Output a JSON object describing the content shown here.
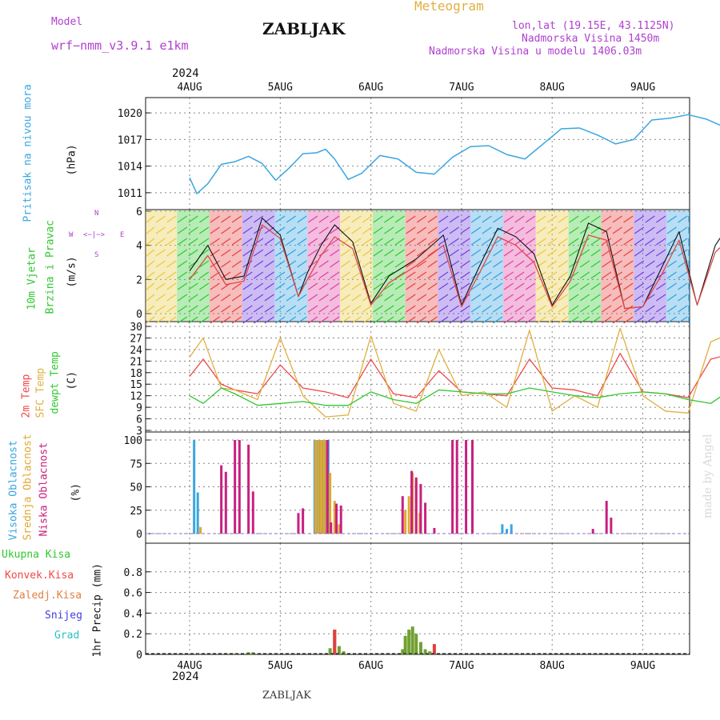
{
  "header": {
    "model_label": "Model",
    "model_name": "wrf−nmm_v3.9.1 e1km",
    "site": "ZABLJAK",
    "meteogram": "Meteogram",
    "coords": "lon,lat (19.15E, 43.1125N)",
    "elevation": "Nadmorska Visina 1450m",
    "model_elevation": "Nadmorska Visina u modelu 1406.03m",
    "footer_site": "ZABLJAK",
    "credit": "made by Angel",
    "year_top": "2024",
    "year_bottom": "2024"
  },
  "day_labels": [
    "4AUG",
    "5AUG",
    "6AUG",
    "7AUG",
    "8AUG",
    "9AUG"
  ],
  "panel_labels": {
    "pressure": {
      "name": "Pritisak na nivou mora",
      "unit": "(hPa)"
    },
    "wind": {
      "name1": "10m Vjetar",
      "name2": "Brzina i Pravac",
      "unit": "(m/s)",
      "rose_n": "N",
      "rose_s": "S",
      "rose_w": "W",
      "rose_e": "E"
    },
    "temp": {
      "t2m": "2m Temp",
      "sfc": "SFC Temp",
      "dew": "dewpt Temp",
      "unit": "(C)"
    },
    "cloud": {
      "high": "Visoka Oblacnost",
      "mid": "Srednja Oblacnost",
      "low": "Niska Oblacnost",
      "unit": "(%)"
    },
    "precip": {
      "total": "Ukupna Kisa",
      "conv": "Konvek.Kisa",
      "frz": "Zaledj.Kisa",
      "snow": "Snijeg",
      "grad": "Grad",
      "unit": "1hr Precip (mm)"
    }
  },
  "colors": {
    "pressure": "#3aa6e0",
    "t2m": "#f04848",
    "sfc": "#e0b040",
    "dew": "#30c830",
    "high": "#3aa6e0",
    "mid": "#e0a830",
    "low": "#c82080",
    "precip_total": "#70a030",
    "precip_conv": "#e04040",
    "purple": "#b040d0"
  },
  "chart_data": [
    {
      "type": "line",
      "panel": "pressure",
      "ylabel": "(hPa)",
      "ylim": [
        1010,
        1021
      ],
      "yticks": [
        1011,
        1014,
        1017,
        1020
      ],
      "x": [
        0,
        0.08,
        0.2,
        0.35,
        0.5,
        0.65,
        0.8,
        0.95,
        1.1,
        1.25,
        1.4,
        1.5,
        1.6,
        1.75,
        1.9,
        2.1,
        2.3,
        2.5,
        2.7,
        2.9,
        3.1,
        3.3,
        3.5,
        3.7,
        3.9,
        4.1,
        4.3,
        4.5,
        4.7,
        4.9,
        5.1,
        5.3,
        5.5,
        5.7,
        5.9,
        6.0
      ],
      "values": [
        1012.7,
        1010.9,
        1012.0,
        1014.2,
        1014.5,
        1015.1,
        1014.3,
        1012.4,
        1013.8,
        1015.4,
        1015.5,
        1015.9,
        1014.8,
        1012.5,
        1013.2,
        1015.2,
        1014.8,
        1013.3,
        1013.1,
        1015.0,
        1016.2,
        1016.3,
        1015.3,
        1014.8,
        1016.5,
        1018.2,
        1018.3,
        1017.5,
        1016.5,
        1017.0,
        1019.2,
        1019.4,
        1019.8,
        1019.3,
        1018.4,
        1017.8
      ],
      "color": "#3aa6e0"
    },
    {
      "type": "line",
      "panel": "wind",
      "ylabel": "(m/s)",
      "ylim": [
        0,
        6
      ],
      "yticks": [
        0,
        2,
        4,
        6
      ],
      "series": [
        {
          "x": [
            0,
            0.2,
            0.4,
            0.6,
            0.8,
            1.0,
            1.2,
            1.3,
            1.45,
            1.6,
            1.8,
            2.0,
            2.2,
            2.5,
            2.8,
            3.0,
            3.2,
            3.4,
            3.6,
            3.8,
            4.0,
            4.2,
            4.4,
            4.6,
            4.8,
            5.0,
            5.2,
            5.4,
            5.6,
            5.8,
            6.0
          ],
          "values": [
            2.5,
            4.0,
            2.0,
            2.2,
            5.6,
            4.6,
            1.0,
            2.4,
            4.0,
            5.2,
            4.2,
            0.6,
            2.2,
            3.2,
            4.6,
            0.5,
            2.8,
            5.0,
            4.5,
            3.5,
            0.5,
            2.2,
            5.3,
            4.8,
            0.3,
            0.4,
            2.6,
            4.8,
            0.5,
            4.0,
            5.6
          ]
        },
        {
          "x": [
            0,
            0.2,
            0.4,
            0.6,
            0.8,
            1.0,
            1.2,
            1.3,
            1.45,
            1.6,
            1.8,
            2.0,
            2.2,
            2.5,
            2.8,
            3.0,
            3.2,
            3.4,
            3.6,
            3.8,
            4.0,
            4.2,
            4.4,
            4.6,
            4.8,
            5.0,
            5.2,
            5.4,
            5.6,
            5.8,
            6.0
          ],
          "values": [
            2.0,
            3.4,
            1.7,
            1.9,
            5.2,
            4.4,
            1.0,
            2.0,
            3.4,
            4.5,
            3.8,
            0.5,
            1.8,
            2.8,
            4.0,
            0.4,
            2.4,
            4.5,
            4.0,
            3.0,
            0.4,
            1.9,
            4.6,
            4.3,
            0.3,
            0.4,
            2.2,
            4.3,
            0.5,
            3.6,
            4.6
          ]
        }
      ]
    },
    {
      "type": "line",
      "panel": "temperature",
      "ylabel": "(C)",
      "ylim": [
        3,
        30
      ],
      "yticks": [
        3,
        6,
        9,
        12,
        15,
        18,
        21,
        24,
        27,
        30
      ],
      "x": [
        0,
        0.15,
        0.35,
        0.5,
        0.75,
        1.0,
        1.25,
        1.5,
        1.75,
        2.0,
        2.25,
        2.5,
        2.75,
        3.0,
        3.25,
        3.5,
        3.75,
        4.0,
        4.25,
        4.5,
        4.75,
        5.0,
        5.25,
        5.5,
        5.75,
        6.0
      ],
      "series": [
        {
          "name": "2m Temp",
          "color": "#f04848",
          "values": [
            17,
            21.5,
            15,
            13.5,
            12.5,
            20,
            14,
            13,
            11.5,
            21.5,
            12.5,
            11.5,
            18.5,
            13,
            12.5,
            12,
            21.5,
            14,
            13.5,
            12,
            23,
            13,
            12.5,
            11.5,
            21.5,
            23
          ]
        },
        {
          "name": "SFC Temp",
          "color": "#e0b040",
          "values": [
            22,
            27,
            14,
            13.5,
            11,
            27,
            12,
            6.5,
            7,
            27.5,
            10,
            8,
            24,
            12,
            13,
            9,
            29,
            8,
            12,
            9,
            29.5,
            12,
            8,
            7.5,
            26,
            28.5
          ]
        },
        {
          "name": "dewpt Temp",
          "color": "#30c830",
          "values": [
            12,
            10,
            14,
            12.5,
            9.5,
            10,
            10.5,
            9.5,
            9.5,
            13,
            11,
            10,
            13.5,
            13,
            12.5,
            12.5,
            14,
            13,
            12,
            11.5,
            12.5,
            13,
            12.5,
            11,
            10,
            14
          ]
        }
      ]
    },
    {
      "type": "bar",
      "panel": "cloud",
      "ylabel": "(%)",
      "ylim": [
        0,
        100
      ],
      "yticks": [
        0,
        25,
        50,
        75,
        100
      ],
      "series": [
        {
          "name": "Visoka Oblacnost",
          "color": "#3aa6e0",
          "x": [
            0.05,
            0.09,
            1.38,
            1.41,
            1.44,
            1.47,
            1.5,
            1.53,
            3.45,
            3.5,
            3.55
          ],
          "values": [
            100,
            44,
            100,
            100,
            100,
            100,
            100,
            100,
            10,
            5,
            10
          ]
        },
        {
          "name": "Srednja Oblacnost",
          "color": "#e0a830",
          "x": [
            0.12,
            1.39,
            1.42,
            1.45,
            1.48,
            1.51,
            1.55,
            1.6,
            1.65,
            2.38,
            2.42,
            2.46,
            2.5,
            2.54
          ],
          "values": [
            7,
            100,
            100,
            100,
            100,
            100,
            65,
            35,
            10,
            25,
            40,
            65,
            57,
            22
          ]
        },
        {
          "name": "Niska Oblacnost",
          "color": "#c82080",
          "x": [
            0.35,
            0.4,
            0.5,
            0.55,
            0.65,
            0.7,
            1.2,
            1.25,
            1.52,
            1.56,
            1.62,
            1.67,
            2.35,
            2.45,
            2.5,
            2.55,
            2.6,
            2.7,
            2.9,
            2.95,
            3.05,
            3.12,
            4.45,
            4.6,
            4.65
          ],
          "values": [
            73,
            66,
            100,
            100,
            95,
            45,
            22,
            27,
            100,
            12,
            32,
            30,
            40,
            67,
            60,
            53,
            33,
            6,
            100,
            100,
            100,
            100,
            5,
            35,
            17
          ]
        }
      ]
    },
    {
      "type": "bar",
      "panel": "precip",
      "ylabel": "1hr Precip (mm)",
      "ylim": [
        0,
        1.0
      ],
      "yticks": [
        0,
        0.2,
        0.4,
        0.6,
        0.8
      ],
      "series": [
        {
          "name": "Ukupna Kisa",
          "color": "#70a030",
          "x": [
            0.1,
            0.5,
            0.65,
            0.7,
            1.55,
            1.6,
            1.65,
            1.7,
            2.35,
            2.38,
            2.42,
            2.46,
            2.5,
            2.55,
            2.6,
            2.65
          ],
          "values": [
            0.01,
            0.01,
            0.02,
            0.02,
            0.06,
            0.24,
            0.08,
            0.03,
            0.05,
            0.18,
            0.24,
            0.27,
            0.2,
            0.12,
            0.05,
            0.03
          ]
        },
        {
          "name": "Konvek.Kisa",
          "color": "#e04040",
          "x": [
            1.6,
            2.7
          ],
          "values": [
            0.24,
            0.1
          ]
        }
      ]
    }
  ]
}
